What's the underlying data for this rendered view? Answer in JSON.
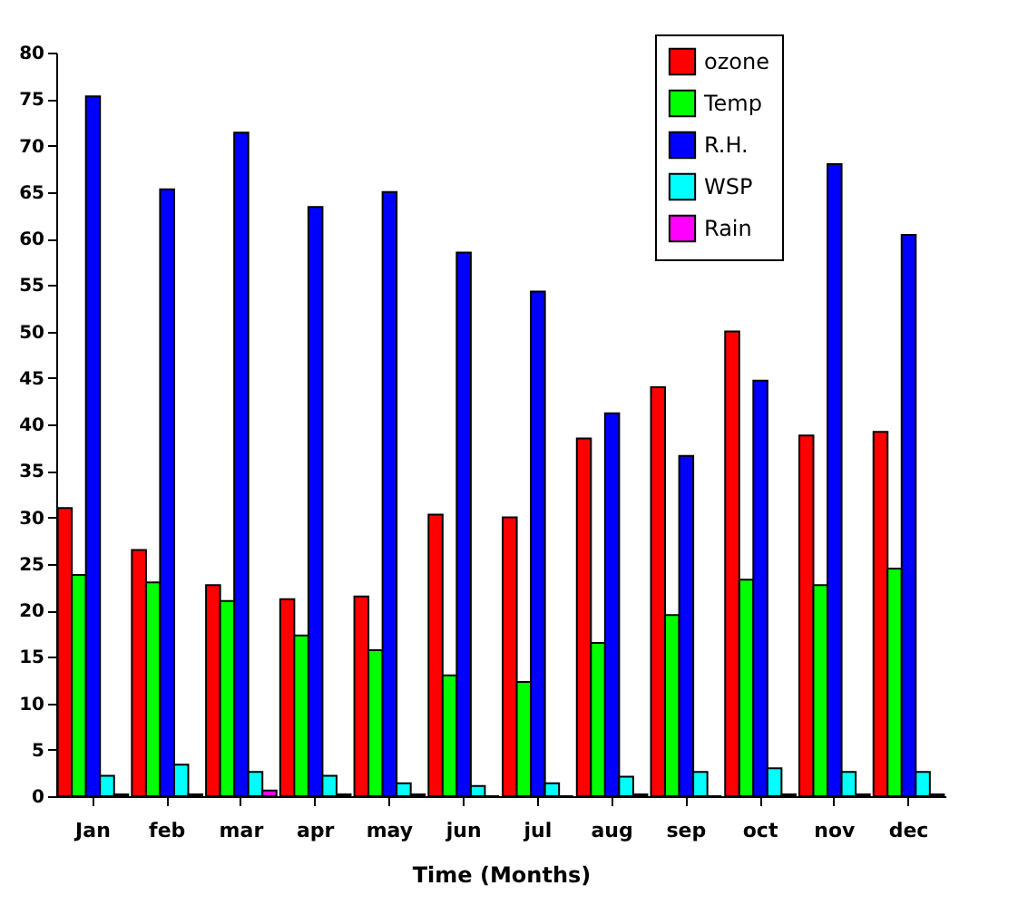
{
  "chart_data": {
    "type": "bar",
    "xlabel": "Time (Months)",
    "categories": [
      "Jan",
      "feb",
      "mar",
      "apr",
      "may",
      "jun",
      "jul",
      "aug",
      "sep",
      "oct",
      "nov",
      "dec"
    ],
    "series": [
      {
        "name": "ozone",
        "color": "#ff0000",
        "values": [
          31,
          26.5,
          22.7,
          21.2,
          21.5,
          30.3,
          30,
          38.5,
          44,
          50,
          38.8,
          39.2
        ]
      },
      {
        "name": "Temp",
        "color": "#00ff00",
        "values": [
          23.8,
          23,
          21,
          17.3,
          15.7,
          13,
          12.3,
          16.5,
          19.5,
          23.3,
          22.7,
          24.5
        ]
      },
      {
        "name": "R.H.",
        "color": "#0000ff",
        "values": [
          75.3,
          65.3,
          71.4,
          63.4,
          65,
          58.5,
          54.3,
          41.2,
          36.6,
          44.7,
          68,
          60.4
        ]
      },
      {
        "name": "WSP",
        "color": "#00ffff",
        "values": [
          2.2,
          3.4,
          2.6,
          2.2,
          1.4,
          1.1,
          1.4,
          2.1,
          2.6,
          3,
          2.6,
          2.6
        ]
      },
      {
        "name": "Rain",
        "color": "#ff00ff",
        "values": [
          0.2,
          0.2,
          0.6,
          0.2,
          0.2,
          0,
          0,
          0.2,
          0,
          0.2,
          0.2,
          0.2
        ]
      }
    ],
    "ylim": [
      0,
      80
    ],
    "yticks": [
      0,
      5,
      10,
      15,
      20,
      25,
      30,
      35,
      40,
      45,
      50,
      55,
      60,
      65,
      70,
      75,
      80
    ],
    "grid": false,
    "legend": "top right"
  }
}
